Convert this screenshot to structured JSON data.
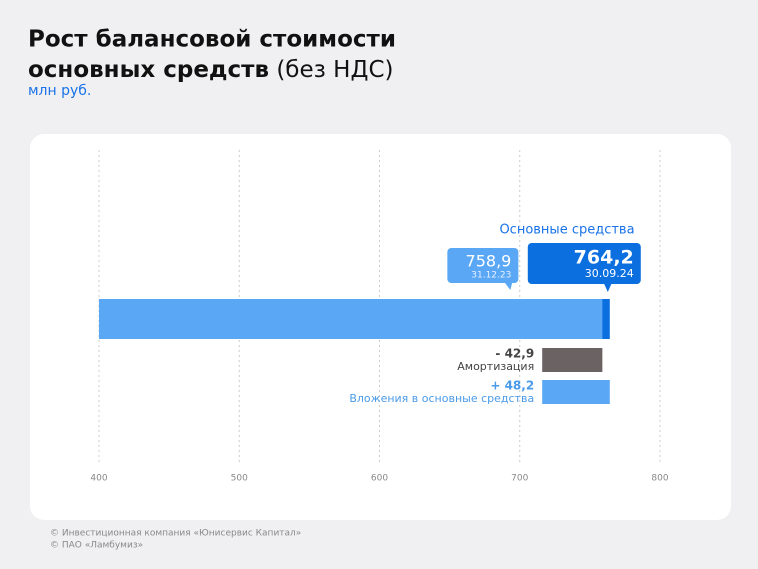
{
  "chart_data": {
    "type": "bar",
    "orientation": "horizontal",
    "title": [
      "Рост балансовой стоимости",
      "основных средств"
    ],
    "title_note": "(без НДС)",
    "subtitle": "млн руб.",
    "series_name": "Основные средства",
    "bars": [
      {
        "value": 758.9,
        "value_label": "758,9",
        "date": "31.12.23",
        "color": "#5aa7f5"
      },
      {
        "value": 764.2,
        "value_label": "764,2",
        "date": "30.09.24",
        "color": "#0b6fe0"
      }
    ],
    "changes": [
      {
        "name": "Амортизация",
        "value": -42.9,
        "value_label": "- 42,9",
        "color": "#6b6363"
      },
      {
        "name": "Вложения в основные средства",
        "value": 48.2,
        "value_label": "+ 48,2",
        "color": "#5aa7f5"
      }
    ],
    "xlim": [
      400,
      800
    ],
    "xticks": [
      400,
      500,
      600,
      700,
      800
    ],
    "grid": true
  },
  "footer": [
    "© Инвестиционная компания «Юнисервис Капитал»",
    "© ПАО «Ламбумиз»"
  ]
}
